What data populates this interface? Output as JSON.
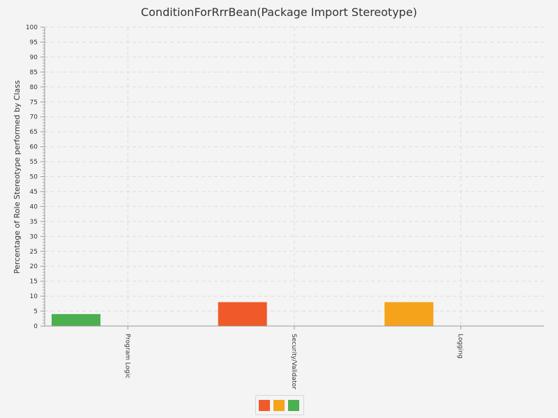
{
  "chart_data": {
    "type": "bar",
    "title": "ConditionForRrrBean(Package Import Stereotype)",
    "ylabel": "Percentage of Role Stereotype performed by Class",
    "xlabel": "",
    "categories": [
      "Program Logic",
      "Security/Validator",
      "Logging"
    ],
    "values": [
      4,
      8,
      8
    ],
    "bar_colors": [
      "#4caf50",
      "#f05a28",
      "#f5a31a"
    ],
    "ylim": [
      0,
      100
    ],
    "yticks": [
      "0",
      "5",
      "10",
      "15",
      "20",
      "25",
      "30",
      "35",
      "40",
      "45",
      "50",
      "55",
      "60",
      "65",
      "70",
      "75",
      "80",
      "85",
      "90",
      "95",
      "100"
    ],
    "grid": true,
    "legend": {
      "placement": "bottom-center",
      "swatches": [
        "#f05a28",
        "#f5a31a",
        "#4caf50"
      ]
    }
  }
}
